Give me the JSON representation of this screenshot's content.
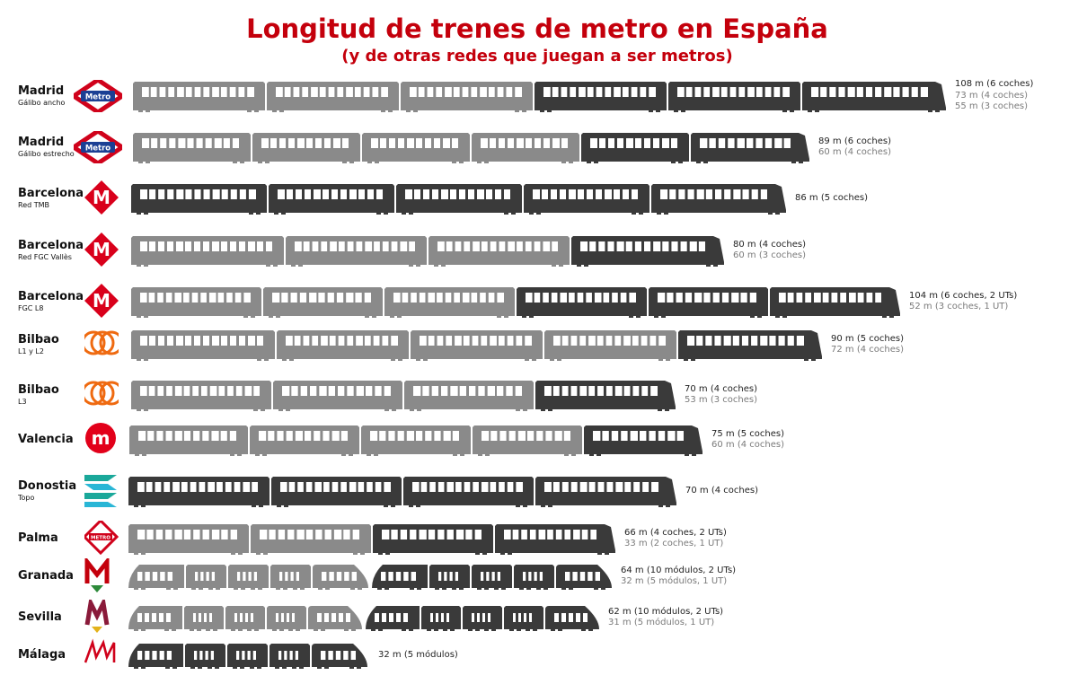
{
  "title": "Longitud de trenes de metro en España",
  "subtitle": "(y de otras redes que juegan a ser metros)",
  "colors": {
    "title": "#c4000c",
    "dark_car": "#3a3a3a",
    "light_car": "#8a8a8a",
    "window": "#ffffff"
  },
  "rows": [
    {
      "city": "Madrid",
      "sub": "Gálibo ancho",
      "logo": "madrid-metro-icon",
      "logo_text": "Metro",
      "cars": [
        [
          "L",
          147
        ],
        [
          "L",
          147
        ],
        [
          "L",
          147
        ],
        [
          "D",
          147
        ],
        [
          "D",
          147
        ],
        [
          "D",
          160
        ]
      ],
      "labels": [
        {
          "text": "108 m (6 coches)",
          "shade": "dark"
        },
        {
          "text": "73 m (4 coches)",
          "shade": "light"
        },
        {
          "text": "55 m (3 coches)",
          "shade": "light"
        }
      ]
    },
    {
      "city": "Madrid",
      "sub": "Gálibo estrecho",
      "logo": "madrid-metro-icon",
      "logo_text": "Metro",
      "cars": [
        [
          "L",
          131
        ],
        [
          "L",
          120
        ],
        [
          "L",
          120
        ],
        [
          "L",
          120
        ],
        [
          "D",
          120
        ],
        [
          "D",
          132
        ]
      ],
      "labels": [
        {
          "text": "89 m (6 coches)",
          "shade": "dark"
        },
        {
          "text": "60 m (4 coches)",
          "shade": "light"
        }
      ]
    },
    {
      "city": "Barcelona",
      "sub": "Red TMB",
      "logo": "barcelona-m-icon",
      "logo_text": "M",
      "cars": [
        [
          "D",
          151
        ],
        [
          "D",
          140
        ],
        [
          "D",
          140
        ],
        [
          "D",
          140
        ],
        [
          "D",
          150
        ]
      ],
      "labels": [
        {
          "text": "86 m (5 coches)",
          "shade": "dark"
        }
      ]
    },
    {
      "city": "Barcelona",
      "sub": "Red FGC Vallès",
      "logo": "barcelona-m-icon",
      "logo_text": "M",
      "cars": [
        [
          "L",
          170
        ],
        [
          "L",
          157
        ],
        [
          "L",
          157
        ],
        [
          "D",
          170
        ]
      ],
      "labels": [
        {
          "text": "80 m (4 coches)",
          "shade": "dark"
        },
        {
          "text": "60 m (3 coches)",
          "shade": "light"
        }
      ]
    },
    {
      "city": "Barcelona",
      "sub": "FGC L8",
      "logo": "barcelona-m-icon",
      "logo_text": "M",
      "cars": [
        [
          "L",
          145
        ],
        [
          "L",
          133
        ],
        [
          "L",
          145
        ],
        [
          "D",
          145
        ],
        [
          "D",
          133
        ],
        [
          "D",
          145
        ]
      ],
      "labels": [
        {
          "text": "104 m (6 coches, 2 UTs)",
          "shade": "dark"
        },
        {
          "text": "52 m (3 coches, 1 UT)",
          "shade": "light"
        }
      ]
    },
    {
      "city": "Bilbao",
      "sub": "L1 y L2",
      "logo": "bilbao-metro-icon",
      "logo_text": "",
      "cars": [
        [
          "L",
          160
        ],
        [
          "L",
          147
        ],
        [
          "L",
          147
        ],
        [
          "L",
          147
        ],
        [
          "D",
          160
        ]
      ],
      "labels": [
        {
          "text": "90 m (5 coches)",
          "shade": "dark"
        },
        {
          "text": "72 m (4 coches)",
          "shade": "light"
        }
      ]
    },
    {
      "city": "Bilbao",
      "sub": "L3",
      "logo": "bilbao-metro-icon",
      "logo_text": "",
      "cars": [
        [
          "L",
          156
        ],
        [
          "L",
          144
        ],
        [
          "L",
          144
        ],
        [
          "D",
          156
        ]
      ],
      "labels": [
        {
          "text": "70 m (4 coches)",
          "shade": "dark"
        },
        {
          "text": "53 m (3 coches)",
          "shade": "light"
        }
      ]
    },
    {
      "city": "Valencia",
      "sub": "",
      "logo": "valencia-metro-icon",
      "logo_text": "m",
      "cars": [
        [
          "L",
          132
        ],
        [
          "L",
          122
        ],
        [
          "L",
          122
        ],
        [
          "L",
          122
        ],
        [
          "D",
          132
        ]
      ],
      "labels": [
        {
          "text": "75 m (5 coches)",
          "shade": "dark"
        },
        {
          "text": "60 m (4 coches)",
          "shade": "light"
        }
      ]
    },
    {
      "city": "Donostia",
      "sub": "Topo",
      "logo": "euskotren-icon",
      "logo_text": "",
      "cars": [
        [
          "D",
          157
        ],
        [
          "D",
          145
        ],
        [
          "D",
          145
        ],
        [
          "D",
          157
        ]
      ],
      "labels": [
        {
          "text": "70 m (4 coches)",
          "shade": "dark"
        }
      ]
    },
    {
      "city": "Palma",
      "sub": "",
      "logo": "palma-metro-icon",
      "logo_text": "METRO",
      "cars": [
        [
          "L",
          134
        ],
        [
          "L",
          134
        ],
        [
          "D",
          134
        ],
        [
          "D",
          134
        ]
      ],
      "labels": [
        {
          "text": "66 m (4 coches, 2 UTs)",
          "shade": "dark"
        },
        {
          "text": "33 m (2 coches, 1 UT)",
          "shade": "light"
        }
      ]
    },
    {
      "city": "Granada",
      "sub": "",
      "logo": "granada-metro-icon",
      "logo_text": "M",
      "cars": [
        [
          "L",
          62
        ],
        [
          "L",
          45
        ],
        [
          "L",
          45
        ],
        [
          "L",
          45
        ],
        [
          "L",
          62
        ],
        [
          "D",
          62
        ],
        [
          "D",
          45
        ],
        [
          "D",
          45
        ],
        [
          "D",
          45
        ],
        [
          "D",
          62
        ]
      ],
      "labels": [
        {
          "text": "64 m (10 módulos, 2 UTs)",
          "shade": "dark"
        },
        {
          "text": "32 m (5 módulos, 1 UT)",
          "shade": "light"
        }
      ]
    },
    {
      "city": "Sevilla",
      "sub": "",
      "logo": "sevilla-metro-icon",
      "logo_text": "M",
      "cars": [
        [
          "L",
          60
        ],
        [
          "L",
          44
        ],
        [
          "L",
          44
        ],
        [
          "L",
          44
        ],
        [
          "L",
          60
        ],
        [
          "D",
          60
        ],
        [
          "D",
          44
        ],
        [
          "D",
          44
        ],
        [
          "D",
          44
        ],
        [
          "D",
          60
        ]
      ],
      "labels": [
        {
          "text": "62 m (10 módulos, 2 UTs)",
          "shade": "dark"
        },
        {
          "text": "31 m (5 módulos, 1 UT)",
          "shade": "light"
        }
      ]
    },
    {
      "city": "Málaga",
      "sub": "",
      "logo": "malaga-metro-icon",
      "logo_text": "",
      "cars": [
        [
          "D",
          61
        ],
        [
          "D",
          45
        ],
        [
          "D",
          45
        ],
        [
          "D",
          45
        ],
        [
          "D",
          62
        ]
      ],
      "labels": [
        {
          "text": "32 m (5 módulos)",
          "shade": "dark"
        }
      ]
    }
  ]
}
